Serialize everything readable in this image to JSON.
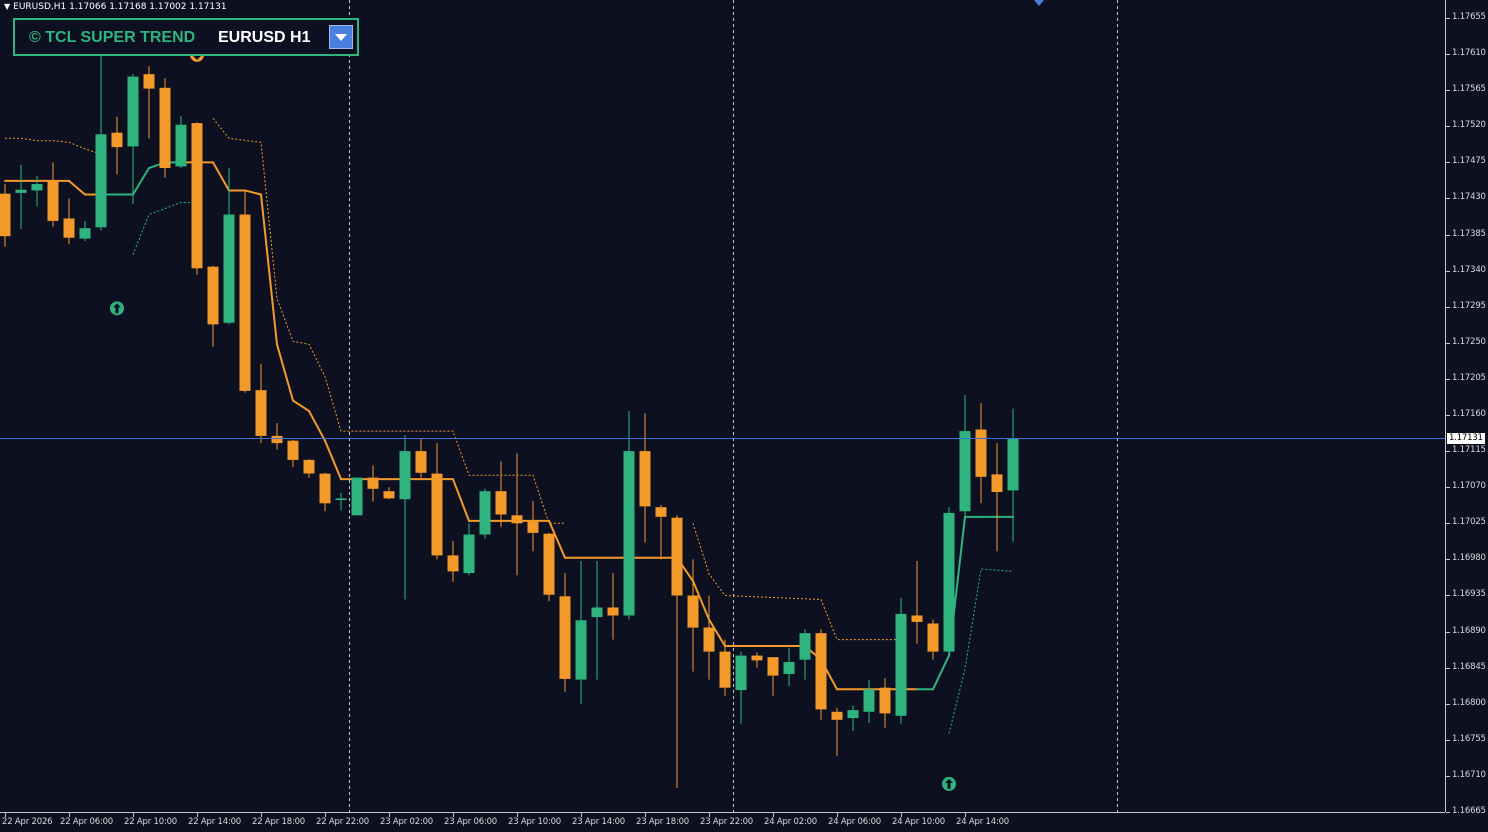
{
  "symbol_info": "EURUSD,H1  1.17066 1.17168 1.17002 1.17131",
  "panel": {
    "title": "© TCL SUPER TREND",
    "symbol": "EURUSD H1"
  },
  "current_price": "1.17131",
  "colors": {
    "background": "#0d1020",
    "bull": "#2fb37f",
    "bear": "#f39a2b",
    "price_line": "#3d6fd6",
    "grid": "#c8c8c8"
  },
  "icons": {
    "dropdown": "dropdown-arrow-icon",
    "up_signal": "up-arrow-signal-icon",
    "down_signal": "down-arrow-signal-icon",
    "menu_caret": "caret-down-icon",
    "shift_marker": "chart-shift-marker-icon"
  },
  "price_ticks": [
    "1.17655",
    "1.17610",
    "1.17565",
    "1.17520",
    "1.17475",
    "1.17430",
    "1.17385",
    "1.17340",
    "1.17295",
    "1.17250",
    "1.17205",
    "1.17160",
    "1.17115",
    "1.17070",
    "1.17025",
    "1.16980",
    "1.16935",
    "1.16890",
    "1.16845",
    "1.16800",
    "1.16755",
    "1.16710",
    "1.16665"
  ],
  "time_labels": [
    "22 Apr 2026",
    "22 Apr 06:00",
    "22 Apr 10:00",
    "22 Apr 14:00",
    "22 Apr 18:00",
    "22 Apr 22:00",
    "23 Apr 02:00",
    "23 Apr 06:00",
    "23 Apr 10:00",
    "23 Apr 14:00",
    "23 Apr 18:00",
    "23 Apr 22:00",
    "24 Apr 02:00",
    "24 Apr 06:00",
    "24 Apr 10:00",
    "24 Apr 14:00"
  ],
  "chart_data": {
    "type": "candlestick",
    "symbol": "EURUSD",
    "timeframe": "H1",
    "ylim": [
      1.16665,
      1.17675
    ],
    "current_price": 1.17131,
    "candles": [
      {
        "t": 0,
        "o": 1.17436,
        "h": 1.17448,
        "l": 1.1737,
        "c": 1.17383
      },
      {
        "t": 1,
        "o": 1.17437,
        "h": 1.17472,
        "l": 1.17392,
        "c": 1.17441
      },
      {
        "t": 2,
        "o": 1.1744,
        "h": 1.17458,
        "l": 1.1742,
        "c": 1.17448
      },
      {
        "t": 3,
        "o": 1.17452,
        "h": 1.17475,
        "l": 1.17395,
        "c": 1.17402
      },
      {
        "t": 4,
        "o": 1.17405,
        "h": 1.1743,
        "l": 1.17373,
        "c": 1.17381
      },
      {
        "t": 5,
        "o": 1.1738,
        "h": 1.17402,
        "l": 1.17377,
        "c": 1.17393
      },
      {
        "t": 6,
        "o": 1.17394,
        "h": 1.1762,
        "l": 1.1739,
        "c": 1.1751
      },
      {
        "t": 7,
        "o": 1.17512,
        "h": 1.17532,
        "l": 1.1746,
        "c": 1.17494
      },
      {
        "t": 8,
        "o": 1.17495,
        "h": 1.17585,
        "l": 1.17423,
        "c": 1.17582
      },
      {
        "t": 9,
        "o": 1.17585,
        "h": 1.17595,
        "l": 1.17505,
        "c": 1.17567
      },
      {
        "t": 10,
        "o": 1.17568,
        "h": 1.1758,
        "l": 1.17456,
        "c": 1.17468
      },
      {
        "t": 11,
        "o": 1.1747,
        "h": 1.17533,
        "l": 1.17468,
        "c": 1.17522
      },
      {
        "t": 12,
        "o": 1.17524,
        "h": 1.17525,
        "l": 1.17335,
        "c": 1.17343
      },
      {
        "t": 13,
        "o": 1.17345,
        "h": 1.17346,
        "l": 1.17245,
        "c": 1.17273
      },
      {
        "t": 14,
        "o": 1.17275,
        "h": 1.17468,
        "l": 1.17273,
        "c": 1.1741
      },
      {
        "t": 15,
        "o": 1.1741,
        "h": 1.1744,
        "l": 1.17188,
        "c": 1.1719
      },
      {
        "t": 16,
        "o": 1.17191,
        "h": 1.17224,
        "l": 1.17125,
        "c": 1.17134
      },
      {
        "t": 17,
        "o": 1.17134,
        "h": 1.1715,
        "l": 1.17117,
        "c": 1.17125
      },
      {
        "t": 18,
        "o": 1.17128,
        "h": 1.17129,
        "l": 1.17095,
        "c": 1.17104
      },
      {
        "t": 19,
        "o": 1.17104,
        "h": 1.17105,
        "l": 1.17082,
        "c": 1.17087
      },
      {
        "t": 20,
        "o": 1.17087,
        "h": 1.17088,
        "l": 1.1704,
        "c": 1.1705
      },
      {
        "t": 21,
        "o": 1.17054,
        "h": 1.17063,
        "l": 1.17041,
        "c": 1.17056
      },
      {
        "t": 22,
        "o": 1.17035,
        "h": 1.17081,
        "l": 1.17035,
        "c": 1.17082
      },
      {
        "t": 23,
        "o": 1.17082,
        "h": 1.17097,
        "l": 1.17052,
        "c": 1.17068
      },
      {
        "t": 24,
        "o": 1.17065,
        "h": 1.1707,
        "l": 1.17055,
        "c": 1.17056
      },
      {
        "t": 25,
        "o": 1.17055,
        "h": 1.17135,
        "l": 1.1693,
        "c": 1.17115
      },
      {
        "t": 26,
        "o": 1.17115,
        "h": 1.1713,
        "l": 1.17082,
        "c": 1.17088
      },
      {
        "t": 27,
        "o": 1.17087,
        "h": 1.17125,
        "l": 1.1698,
        "c": 1.16985
      },
      {
        "t": 28,
        "o": 1.16985,
        "h": 1.17003,
        "l": 1.16952,
        "c": 1.16965
      },
      {
        "t": 29,
        "o": 1.16963,
        "h": 1.17025,
        "l": 1.1696,
        "c": 1.17011
      },
      {
        "t": 30,
        "o": 1.17011,
        "h": 1.17068,
        "l": 1.17006,
        "c": 1.17065
      },
      {
        "t": 31,
        "o": 1.17065,
        "h": 1.17102,
        "l": 1.1702,
        "c": 1.17036
      },
      {
        "t": 32,
        "o": 1.17035,
        "h": 1.17112,
        "l": 1.1696,
        "c": 1.17025
      },
      {
        "t": 33,
        "o": 1.17027,
        "h": 1.17053,
        "l": 1.1699,
        "c": 1.17013
      },
      {
        "t": 34,
        "o": 1.17012,
        "h": 1.17013,
        "l": 1.16928,
        "c": 1.16936
      },
      {
        "t": 35,
        "o": 1.16934,
        "h": 1.16963,
        "l": 1.16815,
        "c": 1.16831
      },
      {
        "t": 36,
        "o": 1.1683,
        "h": 1.16978,
        "l": 1.168,
        "c": 1.16904
      },
      {
        "t": 37,
        "o": 1.16908,
        "h": 1.16978,
        "l": 1.1683,
        "c": 1.1692
      },
      {
        "t": 38,
        "o": 1.1692,
        "h": 1.16963,
        "l": 1.1688,
        "c": 1.1691
      },
      {
        "t": 39,
        "o": 1.1691,
        "h": 1.17165,
        "l": 1.16905,
        "c": 1.17115
      },
      {
        "t": 40,
        "o": 1.17115,
        "h": 1.17162,
        "l": 1.17001,
        "c": 1.17046
      },
      {
        "t": 41,
        "o": 1.17045,
        "h": 1.17048,
        "l": 1.1698,
        "c": 1.17033
      },
      {
        "t": 42,
        "o": 1.17032,
        "h": 1.17035,
        "l": 1.16695,
        "c": 1.16935
      },
      {
        "t": 43,
        "o": 1.16935,
        "h": 1.1698,
        "l": 1.1684,
        "c": 1.16895
      },
      {
        "t": 44,
        "o": 1.16895,
        "h": 1.16935,
        "l": 1.1683,
        "c": 1.16865
      },
      {
        "t": 45,
        "o": 1.16865,
        "h": 1.1688,
        "l": 1.1681,
        "c": 1.1682
      },
      {
        "t": 46,
        "o": 1.16817,
        "h": 1.16865,
        "l": 1.16775,
        "c": 1.1686
      },
      {
        "t": 47,
        "o": 1.1686,
        "h": 1.16864,
        "l": 1.16845,
        "c": 1.16854
      },
      {
        "t": 48,
        "o": 1.16858,
        "h": 1.16858,
        "l": 1.1681,
        "c": 1.16835
      },
      {
        "t": 49,
        "o": 1.16837,
        "h": 1.1687,
        "l": 1.16822,
        "c": 1.16852
      },
      {
        "t": 50,
        "o": 1.16855,
        "h": 1.16893,
        "l": 1.1683,
        "c": 1.16888
      },
      {
        "t": 51,
        "o": 1.16888,
        "h": 1.16893,
        "l": 1.1678,
        "c": 1.16793
      },
      {
        "t": 52,
        "o": 1.1679,
        "h": 1.16795,
        "l": 1.16735,
        "c": 1.1678
      },
      {
        "t": 53,
        "o": 1.16782,
        "h": 1.16798,
        "l": 1.16766,
        "c": 1.16792
      },
      {
        "t": 54,
        "o": 1.1679,
        "h": 1.1683,
        "l": 1.16776,
        "c": 1.16818
      },
      {
        "t": 55,
        "o": 1.1682,
        "h": 1.16832,
        "l": 1.1677,
        "c": 1.16788
      },
      {
        "t": 56,
        "o": 1.16785,
        "h": 1.16932,
        "l": 1.16775,
        "c": 1.16912
      },
      {
        "t": 57,
        "o": 1.1691,
        "h": 1.16978,
        "l": 1.16875,
        "c": 1.16902
      },
      {
        "t": 58,
        "o": 1.169,
        "h": 1.16905,
        "l": 1.16855,
        "c": 1.16865
      },
      {
        "t": 59,
        "o": 1.16865,
        "h": 1.17045,
        "l": 1.1686,
        "c": 1.17038
      },
      {
        "t": 60,
        "o": 1.1704,
        "h": 1.17185,
        "l": 1.1703,
        "c": 1.1714
      },
      {
        "t": 61,
        "o": 1.17142,
        "h": 1.17175,
        "l": 1.1705,
        "c": 1.17083
      },
      {
        "t": 62,
        "o": 1.17086,
        "h": 1.17125,
        "l": 1.1699,
        "c": 1.17064
      },
      {
        "t": 63,
        "o": 1.17066,
        "h": 1.17168,
        "l": 1.17002,
        "c": 1.17131
      }
    ],
    "supertrend_main": [
      {
        "t": 0,
        "v": 1.17452
      },
      {
        "t": 1,
        "v": 1.17452
      },
      {
        "t": 2,
        "v": 1.17452
      },
      {
        "t": 3,
        "v": 1.17452
      },
      {
        "t": 4,
        "v": 1.17452
      },
      {
        "t": 5,
        "v": 1.17435
      },
      {
        "t": 6,
        "v": 1.17435
      },
      {
        "t": 7,
        "v": 1.17435
      },
      {
        "t": 8,
        "v": 1.17435
      },
      {
        "t": 9,
        "v": 1.17468
      },
      {
        "t": 10,
        "v": 1.17475
      },
      {
        "t": 11,
        "v": 1.17475
      },
      {
        "t": 12,
        "v": 1.17475
      },
      {
        "t": 13,
        "v": 1.17475
      },
      {
        "t": 14,
        "v": 1.1744
      },
      {
        "t": 15,
        "v": 1.1744
      },
      {
        "t": 16,
        "v": 1.17435
      },
      {
        "t": 17,
        "v": 1.17248
      },
      {
        "t": 18,
        "v": 1.17178
      },
      {
        "t": 19,
        "v": 1.17165
      },
      {
        "t": 20,
        "v": 1.17128
      },
      {
        "t": 21,
        "v": 1.1708
      },
      {
        "t": 22,
        "v": 1.1708
      },
      {
        "t": 23,
        "v": 1.1708
      },
      {
        "t": 24,
        "v": 1.1708
      },
      {
        "t": 25,
        "v": 1.1708
      },
      {
        "t": 26,
        "v": 1.1708
      },
      {
        "t": 27,
        "v": 1.1708
      },
      {
        "t": 28,
        "v": 1.1708
      },
      {
        "t": 29,
        "v": 1.17028
      },
      {
        "t": 30,
        "v": 1.17028
      },
      {
        "t": 31,
        "v": 1.17028
      },
      {
        "t": 32,
        "v": 1.17028
      },
      {
        "t": 33,
        "v": 1.17028
      },
      {
        "t": 34,
        "v": 1.17028
      },
      {
        "t": 35,
        "v": 1.16982
      },
      {
        "t": 36,
        "v": 1.16982
      },
      {
        "t": 37,
        "v": 1.16982
      },
      {
        "t": 38,
        "v": 1.16982
      },
      {
        "t": 39,
        "v": 1.16982
      },
      {
        "t": 40,
        "v": 1.16982
      },
      {
        "t": 41,
        "v": 1.16982
      },
      {
        "t": 42,
        "v": 1.16982
      },
      {
        "t": 43,
        "v": 1.16953
      },
      {
        "t": 44,
        "v": 1.16905
      },
      {
        "t": 45,
        "v": 1.16872
      },
      {
        "t": 46,
        "v": 1.16872
      },
      {
        "t": 47,
        "v": 1.16872
      },
      {
        "t": 48,
        "v": 1.16872
      },
      {
        "t": 49,
        "v": 1.16872
      },
      {
        "t": 50,
        "v": 1.16872
      },
      {
        "t": 51,
        "v": 1.16855
      },
      {
        "t": 52,
        "v": 1.16818
      },
      {
        "t": 53,
        "v": 1.16818
      },
      {
        "t": 54,
        "v": 1.16818
      },
      {
        "t": 55,
        "v": 1.16818
      },
      {
        "t": 56,
        "v": 1.16818
      },
      {
        "t": 57,
        "v": 1.16818
      },
      {
        "t": 58,
        "v": 1.16818
      },
      {
        "t": 59,
        "v": 1.1686
      },
      {
        "t": 60,
        "v": 1.17033
      },
      {
        "t": 61,
        "v": 1.17033
      },
      {
        "t": 62,
        "v": 1.17033
      },
      {
        "t": 63,
        "v": 1.17033
      }
    ],
    "supertrend_main_trend": [
      "bear",
      "bear",
      "bear",
      "bear",
      "bear",
      "bear",
      "bear",
      "bull",
      "bull",
      "bull",
      "bull",
      "bull",
      "bear",
      "bear",
      "bear",
      "bear",
      "bear",
      "bear",
      "bear",
      "bear",
      "bear",
      "bear",
      "bear",
      "bear",
      "bear",
      "bear",
      "bear",
      "bear",
      "bear",
      "bear",
      "bear",
      "bear",
      "bear",
      "bear",
      "bear",
      "bear",
      "bear",
      "bear",
      "bear",
      "bear",
      "bear",
      "bear",
      "bear",
      "bear",
      "bear",
      "bear",
      "bear",
      "bear",
      "bear",
      "bear",
      "bear",
      "bear",
      "bear",
      "bear",
      "bear",
      "bear",
      "bear",
      "bear",
      "bull",
      "bull",
      "bull",
      "bull",
      "bull",
      "bull"
    ],
    "upper_band": [
      {
        "t": 0,
        "v": 1.17505
      },
      {
        "t": 1,
        "v": 1.17505
      },
      {
        "t": 2,
        "v": 1.17502
      },
      {
        "t": 3,
        "v": 1.17502
      },
      {
        "t": 4,
        "v": 1.175
      },
      {
        "t": 5,
        "v": 1.17492
      },
      {
        "t": 6,
        "v": 1.17485
      },
      {
        "t": 13,
        "v": 1.1753
      },
      {
        "t": 14,
        "v": 1.17505
      },
      {
        "t": 16,
        "v": 1.175
      },
      {
        "t": 17,
        "v": 1.17305
      },
      {
        "t": 18,
        "v": 1.17252
      },
      {
        "t": 19,
        "v": 1.17248
      },
      {
        "t": 20,
        "v": 1.17208
      },
      {
        "t": 21,
        "v": 1.1714
      },
      {
        "t": 22,
        "v": 1.1714
      },
      {
        "t": 28,
        "v": 1.1714
      },
      {
        "t": 29,
        "v": 1.17085
      },
      {
        "t": 33,
        "v": 1.17085
      },
      {
        "t": 34,
        "v": 1.17025
      },
      {
        "t": 35,
        "v": 1.17025
      },
      {
        "t": 43,
        "v": 1.17025
      },
      {
        "t": 44,
        "v": 1.16962
      },
      {
        "t": 45,
        "v": 1.16935
      },
      {
        "t": 51,
        "v": 1.1693
      },
      {
        "t": 52,
        "v": 1.1688
      },
      {
        "t": 56,
        "v": 1.1688
      }
    ],
    "lower_band": [
      {
        "t": 8,
        "v": 1.1736
      },
      {
        "t": 9,
        "v": 1.1741
      },
      {
        "t": 11,
        "v": 1.17425
      },
      {
        "t": 12,
        "v": 1.17425
      },
      {
        "t": 59,
        "v": 1.16763
      },
      {
        "t": 60,
        "v": 1.16843
      },
      {
        "t": 61,
        "v": 1.16968
      },
      {
        "t": 63,
        "v": 1.16965
      }
    ],
    "signals": [
      {
        "t": 7,
        "type": "buy",
        "price": 1.17293
      },
      {
        "t": 12,
        "type": "sell",
        "price": 1.17609
      },
      {
        "t": 59,
        "type": "buy",
        "price": 1.167
      }
    ],
    "vertical_separators": [
      21.5,
      45.5,
      69.5
    ]
  }
}
